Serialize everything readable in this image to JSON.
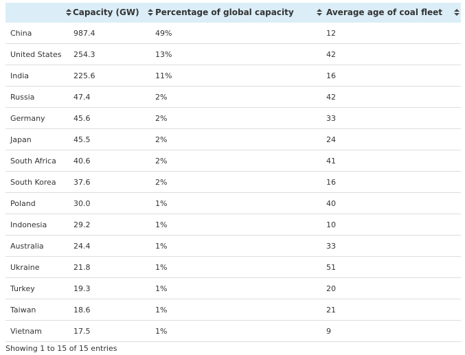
{
  "table": {
    "columns": [
      {
        "label": "",
        "sortable": true
      },
      {
        "label": "Capacity (GW)",
        "sortable": true
      },
      {
        "label": "Percentage of global capacity",
        "sortable": true
      },
      {
        "label": "Average age of coal fleet",
        "sortable": true
      }
    ],
    "rows": [
      [
        "China",
        "987.4",
        "49%",
        "12"
      ],
      [
        "United States",
        "254.3",
        "13%",
        "42"
      ],
      [
        "India",
        "225.6",
        "11%",
        "16"
      ],
      [
        "Russia",
        "47.4",
        "2%",
        "42"
      ],
      [
        "Germany",
        "45.6",
        "2%",
        "33"
      ],
      [
        "Japan",
        "45.5",
        "2%",
        "24"
      ],
      [
        "South Africa",
        "40.6",
        "2%",
        "41"
      ],
      [
        "South Korea",
        "37.6",
        "2%",
        "16"
      ],
      [
        "Poland",
        "30.0",
        "1%",
        "40"
      ],
      [
        "Indonesia",
        "29.2",
        "1%",
        "10"
      ],
      [
        "Australia",
        "24.4",
        "1%",
        "33"
      ],
      [
        "Ukraine",
        "21.8",
        "1%",
        "51"
      ],
      [
        "Turkey",
        "19.3",
        "1%",
        "20"
      ],
      [
        "Taiwan",
        "18.6",
        "1%",
        "21"
      ],
      [
        "Vietnam",
        "17.5",
        "1%",
        "9"
      ]
    ]
  },
  "footer": {
    "info_text": "Showing 1 to 15 of 15 entries"
  },
  "colors": {
    "header_bg": "#dbeef7",
    "row_border": "#dddddd",
    "text": "#333333"
  },
  "icons": {
    "sort": "sort-both-arrows-icon"
  }
}
